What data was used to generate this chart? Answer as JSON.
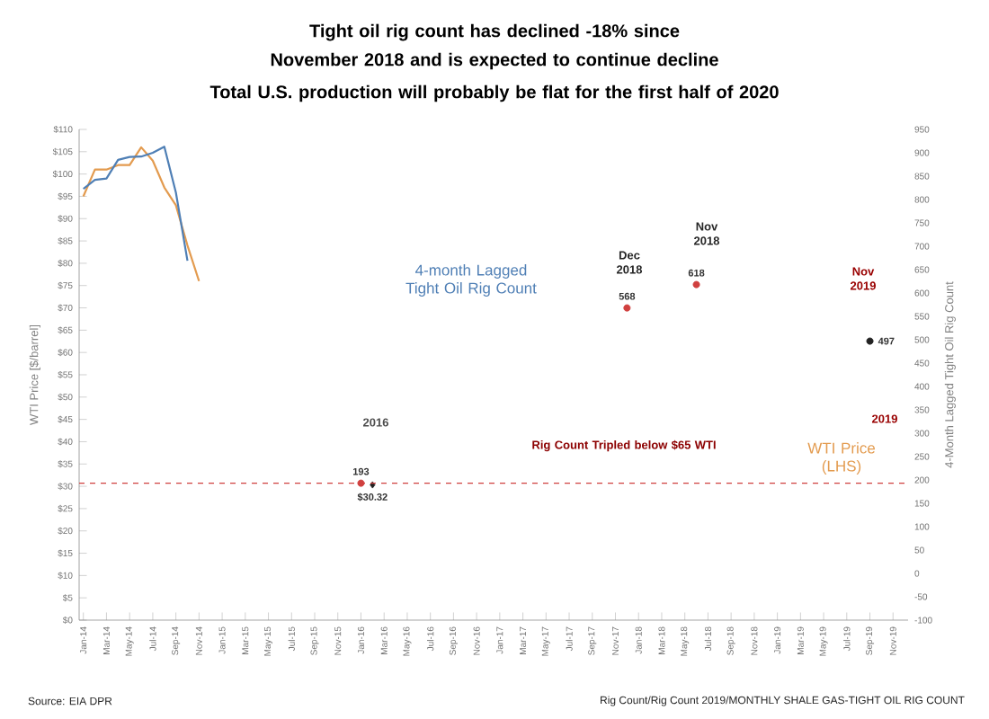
{
  "chart_data": {
    "type": "line",
    "title": "Tight oil rig count has declined -18% since November 2018 and is expected to continue decline",
    "subtitle": "Total U.S. production will probably be flat for the first half of 2020",
    "ylabel": "WTI Price [$/barrel]",
    "y2label": "4-Month Lagged Tight Oil Rig Count",
    "xlim": [
      "2013-12-20",
      "2019-12-10"
    ],
    "xticks": [
      {
        "value": "2014-01",
        "label": "Jan-14"
      },
      {
        "value": "2014-03",
        "label": "Mar-14"
      },
      {
        "value": "2014-05",
        "label": "May-14"
      },
      {
        "value": "2014-07",
        "label": "Jul-14"
      },
      {
        "value": "2014-09",
        "label": "Sep-14"
      },
      {
        "value": "2014-11",
        "label": "Nov-14"
      },
      {
        "value": "2015-01",
        "label": "Jan-15"
      },
      {
        "value": "2015-03",
        "label": "Mar-15"
      },
      {
        "value": "2015-05",
        "label": "May-15"
      },
      {
        "value": "2015-07",
        "label": "Jul-15"
      },
      {
        "value": "2015-09",
        "label": "Sep-15"
      },
      {
        "value": "2015-11",
        "label": "Nov-15"
      },
      {
        "value": "2016-01",
        "label": "Jan-16"
      },
      {
        "value": "2016-03",
        "label": "Mar-16"
      },
      {
        "value": "2016-05",
        "label": "May-16"
      },
      {
        "value": "2016-07",
        "label": "Jul-16"
      },
      {
        "value": "2016-09",
        "label": "Sep-16"
      },
      {
        "value": "2016-11",
        "label": "Nov-16"
      },
      {
        "value": "2017-01",
        "label": "Jan-17"
      },
      {
        "value": "2017-03",
        "label": "Mar-17"
      },
      {
        "value": "2017-05",
        "label": "May-17"
      },
      {
        "value": "2017-07",
        "label": "Jul-17"
      },
      {
        "value": "2017-09",
        "label": "Sep-17"
      },
      {
        "value": "2017-11",
        "label": "Nov-17"
      },
      {
        "value": "2018-01",
        "label": "Jan-18"
      },
      {
        "value": "2018-03",
        "label": "Mar-18"
      },
      {
        "value": "2018-05",
        "label": "May-18"
      },
      {
        "value": "2018-07",
        "label": "Jul-18"
      },
      {
        "value": "2018-09",
        "label": "Sep-18"
      },
      {
        "value": "2018-11",
        "label": "Nov-18"
      },
      {
        "value": "2019-01",
        "label": "Jan-19"
      },
      {
        "value": "2019-03",
        "label": "Mar-19"
      },
      {
        "value": "2019-05",
        "label": "May-19"
      },
      {
        "value": "2019-07",
        "label": "Jul-19"
      },
      {
        "value": "2019-09",
        "label": "Sep-19"
      },
      {
        "value": "2019-11",
        "label": "Nov-19"
      }
    ],
    "ylim": [
      0,
      110
    ],
    "yticks": [
      {
        "value": 0,
        "label": "$0"
      },
      {
        "value": 5,
        "label": "$5"
      },
      {
        "value": 10,
        "label": "$10"
      },
      {
        "value": 15,
        "label": "$15"
      },
      {
        "value": 20,
        "label": "$20"
      },
      {
        "value": 25,
        "label": "$25"
      },
      {
        "value": 30,
        "label": "$30"
      },
      {
        "value": 35,
        "label": "$35"
      },
      {
        "value": 40,
        "label": "$40"
      },
      {
        "value": 45,
        "label": "$45"
      },
      {
        "value": 50,
        "label": "$50"
      },
      {
        "value": 55,
        "label": "$55"
      },
      {
        "value": 60,
        "label": "$60"
      },
      {
        "value": 65,
        "label": "$65"
      },
      {
        "value": 70,
        "label": "$70"
      },
      {
        "value": 75,
        "label": "$75"
      },
      {
        "value": 80,
        "label": "$80"
      },
      {
        "value": 85,
        "label": "$85"
      },
      {
        "value": 90,
        "label": "$90"
      },
      {
        "value": 95,
        "label": "$95"
      },
      {
        "value": 100,
        "label": "$100"
      },
      {
        "value": 105,
        "label": "$105"
      },
      {
        "value": 110,
        "label": "$110"
      }
    ],
    "y2lim": [
      -100,
      950
    ],
    "y2ticks": [
      -100,
      -50,
      0,
      50,
      100,
      150,
      200,
      250,
      300,
      350,
      400,
      450,
      500,
      550,
      600,
      650,
      700,
      750,
      800,
      850,
      900,
      950
    ],
    "series": [
      {
        "name": "WTI Price (LHS)",
        "color": "#e39b4f",
        "x": [
          "2014-01",
          "2014-02",
          "2014-03",
          "2014-04",
          "2014-05",
          "2014-06",
          "2014-07",
          "2014-08",
          "2014-09",
          "2014-10",
          "2014-11"
        ],
        "values": [
          95,
          101,
          101,
          102,
          102,
          106,
          103,
          97,
          93,
          84,
          76
        ]
      },
      {
        "name": "4-month Lagged Tight Oil Rig Count",
        "axis": "y2",
        "color": "#4f7fb5",
        "x": [
          "2014-01",
          "2014-02",
          "2014-03",
          "2014-04",
          "2014-05",
          "2014-06",
          "2014-07",
          "2014-08",
          "2014-09",
          "2014-10"
        ],
        "values": [
          823,
          842,
          845,
          885,
          891,
          892,
          900,
          913,
          815,
          669
        ]
      },
      {
        "type": "scatter",
        "axis": "y2",
        "marker": "circle",
        "color": "#d0403f",
        "x": [
          "2016-01",
          "2017-12",
          "2018-06"
        ],
        "values": [
          193,
          568,
          618
        ],
        "value_labels": [
          "193",
          "568",
          "618"
        ]
      },
      {
        "type": "scatter",
        "marker": "diamond",
        "color": "#222222",
        "x": [
          "2016-02"
        ],
        "values": [
          30.32
        ],
        "value_labels": [
          "$30.32"
        ]
      },
      {
        "type": "scatter",
        "axis": "y2",
        "marker": "circle",
        "color": "#222222",
        "x": [
          "2019-09"
        ],
        "values": [
          497
        ],
        "value_labels": [
          "497"
        ]
      }
    ],
    "ref_lines": [
      {
        "axis": "y2",
        "value": 193,
        "color": "#d0403f",
        "line_style": "dashed"
      }
    ],
    "annotations": [
      "2016",
      "Dec 2018",
      "Nov 2018",
      "Nov 2019",
      "2019",
      "Rig Count Tripled below $65 WTI",
      "Source: EIA DPR",
      "Rig Count/Rig Count 2019/MONTHLY SHALE GAS-TIGHT OIL RIG COUNT"
    ]
  }
}
